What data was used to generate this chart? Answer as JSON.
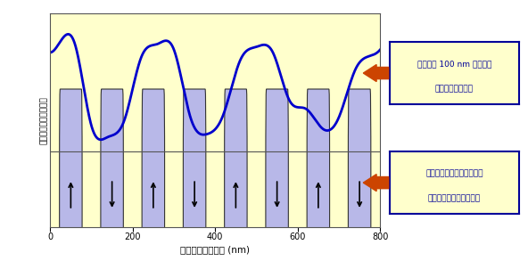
{
  "bg_color": "#ffffcc",
  "fig_bg_color": "#ffffff",
  "line_color": "#0000cc",
  "line_width": 2.0,
  "xlim": [
    0,
    800
  ],
  "xlabel": "トラック方向距離 (nm)",
  "ylabel": "再生出力（任意単位）",
  "xticks": [
    0,
    200,
    400,
    600,
    800
  ],
  "note1_line1": "ビット長 100 nm の信号を",
  "note1_line2": "記録後の再生波形",
  "note2_line1": "波形に対応するナノホール",
  "note2_line2": "位置と磁化方向の模式図",
  "box_color": "#ffffcc",
  "box_edge_color": "#000099",
  "arrow_color": "#cc4400",
  "nanohole_fill": "#b8b8e8",
  "nanohole_edge": "#333333",
  "num_holes": 8,
  "waveform_x": [
    0,
    30,
    60,
    100,
    140,
    180,
    220,
    260,
    300,
    340,
    380,
    420,
    460,
    500,
    540,
    580,
    620,
    660,
    700,
    740,
    780,
    800
  ],
  "waveform_y": [
    0.6,
    0.85,
    0.75,
    -0.7,
    -0.9,
    -0.6,
    0.5,
    0.75,
    0.65,
    -0.55,
    -0.85,
    -0.5,
    0.45,
    0.7,
    0.6,
    -0.25,
    -0.4,
    -0.75,
    -0.55,
    0.3,
    0.55,
    0.65
  ]
}
